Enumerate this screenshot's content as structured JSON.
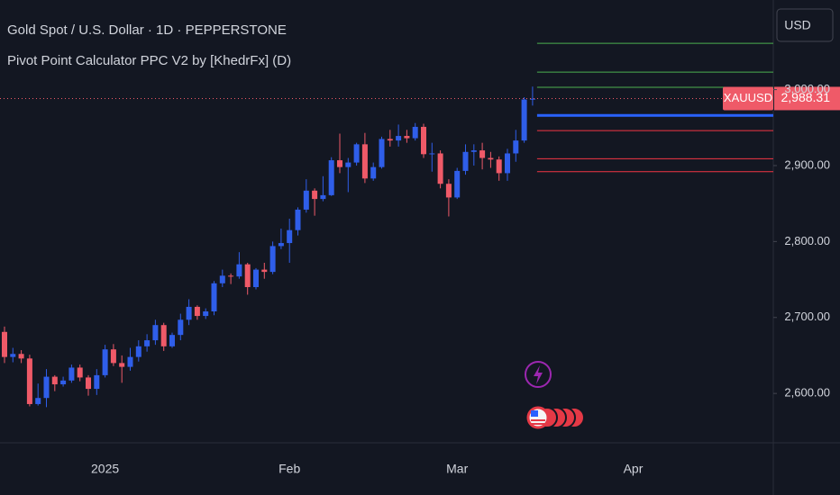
{
  "chart_data": {
    "type": "candlestick",
    "title": "Gold Spot / U.S. Dollar · 1D · PEPPERSTONE",
    "subtitle": "Pivot Point Calculator PPC V2 by [KhedrFx] (D)",
    "currency": "USD",
    "symbol": "XAUUSD",
    "last_price": {
      "value": 2988.31,
      "label": "2,988.31"
    },
    "up_color": "#2f5ee9",
    "down_color": "#ef5a68",
    "categories": [
      null,
      null,
      null,
      null,
      null,
      null,
      null,
      null,
      null,
      null,
      null,
      null,
      "2025",
      null,
      null,
      null,
      null,
      null,
      null,
      null,
      null,
      null,
      null,
      null,
      null,
      null,
      null,
      null,
      null,
      null,
      null,
      null,
      null,
      null,
      "Feb",
      null,
      null,
      null,
      null,
      null,
      null,
      null,
      null,
      null,
      null,
      null,
      null,
      null,
      null,
      null,
      null,
      null,
      null,
      null,
      "Mar",
      null,
      null,
      null,
      null,
      null,
      null,
      null,
      null,
      null,
      null,
      null,
      null,
      null,
      null,
      null,
      null,
      null,
      null,
      null,
      null,
      "Apr"
    ],
    "open": [
      2681,
      2648,
      2652,
      2646,
      2586,
      2594,
      2622,
      2612,
      2617,
      2634,
      2621,
      2606,
      2624,
      2658,
      2640,
      2635,
      2648,
      2662,
      2670,
      2690,
      2662,
      2677,
      2697,
      2714,
      2702,
      2708,
      2745,
      2755,
      2754,
      2770,
      2740,
      2763,
      2760,
      2794,
      2798,
      2815,
      2842,
      2867,
      2856,
      2861,
      2907,
      2898,
      2904,
      2928,
      2883,
      2898,
      2935,
      2933,
      2939,
      2936,
      2951,
      2915,
      2916,
      2876,
      2858,
      2893,
      2918,
      2920,
      2910,
      2908,
      2890,
      2916,
      2933,
      2987,
      null,
      null,
      null,
      null,
      null,
      null,
      null,
      null,
      null,
      null,
      null,
      null
    ],
    "high": [
      2688,
      2660,
      2657,
      2651,
      2613,
      2632,
      2624,
      2622,
      2638,
      2638,
      2624,
      2632,
      2664,
      2665,
      2650,
      2660,
      2670,
      2678,
      2697,
      2693,
      2680,
      2705,
      2724,
      2716,
      2712,
      2748,
      2763,
      2758,
      2786,
      2772,
      2765,
      2772,
      2800,
      2817,
      2830,
      2845,
      2882,
      2870,
      2886,
      2911,
      2942,
      2910,
      2930,
      2943,
      2904,
      2938,
      2947,
      2954,
      2947,
      2956,
      2955,
      2930,
      2920,
      2882,
      2897,
      2928,
      2928,
      2930,
      2918,
      2912,
      2922,
      2947,
      2990,
      3004,
      null,
      null,
      null,
      null,
      null,
      null,
      null,
      null,
      null,
      null,
      null,
      null
    ],
    "low": [
      2640,
      2641,
      2640,
      2583,
      2584,
      2582,
      2603,
      2609,
      2614,
      2616,
      2597,
      2598,
      2621,
      2636,
      2614,
      2630,
      2642,
      2655,
      2664,
      2656,
      2660,
      2670,
      2690,
      2697,
      2698,
      2703,
      2740,
      2744,
      2751,
      2730,
      2737,
      2751,
      2757,
      2790,
      2772,
      2808,
      2838,
      2834,
      2853,
      2860,
      2890,
      2865,
      2900,
      2877,
      2880,
      2896,
      2925,
      2925,
      2930,
      2933,
      2910,
      2892,
      2870,
      2833,
      2856,
      2888,
      2900,
      2895,
      2897,
      2880,
      2880,
      2905,
      2930,
      2979,
      null,
      null,
      null,
      null,
      null,
      null,
      null,
      null,
      null,
      null,
      null,
      null
    ],
    "close": [
      2648,
      2652,
      2646,
      2586,
      2594,
      2622,
      2612,
      2617,
      2634,
      2621,
      2606,
      2624,
      2658,
      2640,
      2635,
      2648,
      2662,
      2670,
      2690,
      2662,
      2677,
      2697,
      2714,
      2702,
      2708,
      2745,
      2755,
      2754,
      2770,
      2740,
      2763,
      2760,
      2794,
      2798,
      2815,
      2842,
      2867,
      2856,
      2861,
      2907,
      2898,
      2904,
      2928,
      2883,
      2898,
      2935,
      2933,
      2939,
      2936,
      2951,
      2915,
      2916,
      2876,
      2858,
      2893,
      2918,
      2920,
      2910,
      2908,
      2890,
      2916,
      2933,
      2987,
      2988,
      null,
      null,
      null,
      null,
      null,
      null,
      null,
      null,
      null,
      null,
      null,
      null
    ],
    "pivot_levels": {
      "values": [
        3061,
        3023,
        3003,
        2966,
        2946,
        2909,
        2892
      ],
      "colors": [
        "#4caf50",
        "#4caf50",
        "#4caf50",
        "#2962ff",
        "#f23645",
        "#f23645",
        "#f23645"
      ],
      "widths": [
        1,
        1,
        1,
        3,
        1,
        1,
        1
      ]
    },
    "ylim": [
      2535,
      3118
    ],
    "yticks": [
      {
        "value": 2600,
        "label": "2,600.00"
      },
      {
        "value": 2700,
        "label": "2,700.00"
      },
      {
        "value": 2800,
        "label": "2,800.00"
      },
      {
        "value": 2900,
        "label": "2,900.00"
      },
      {
        "value": 3000,
        "label": "3,000.00"
      }
    ],
    "grid": false
  }
}
